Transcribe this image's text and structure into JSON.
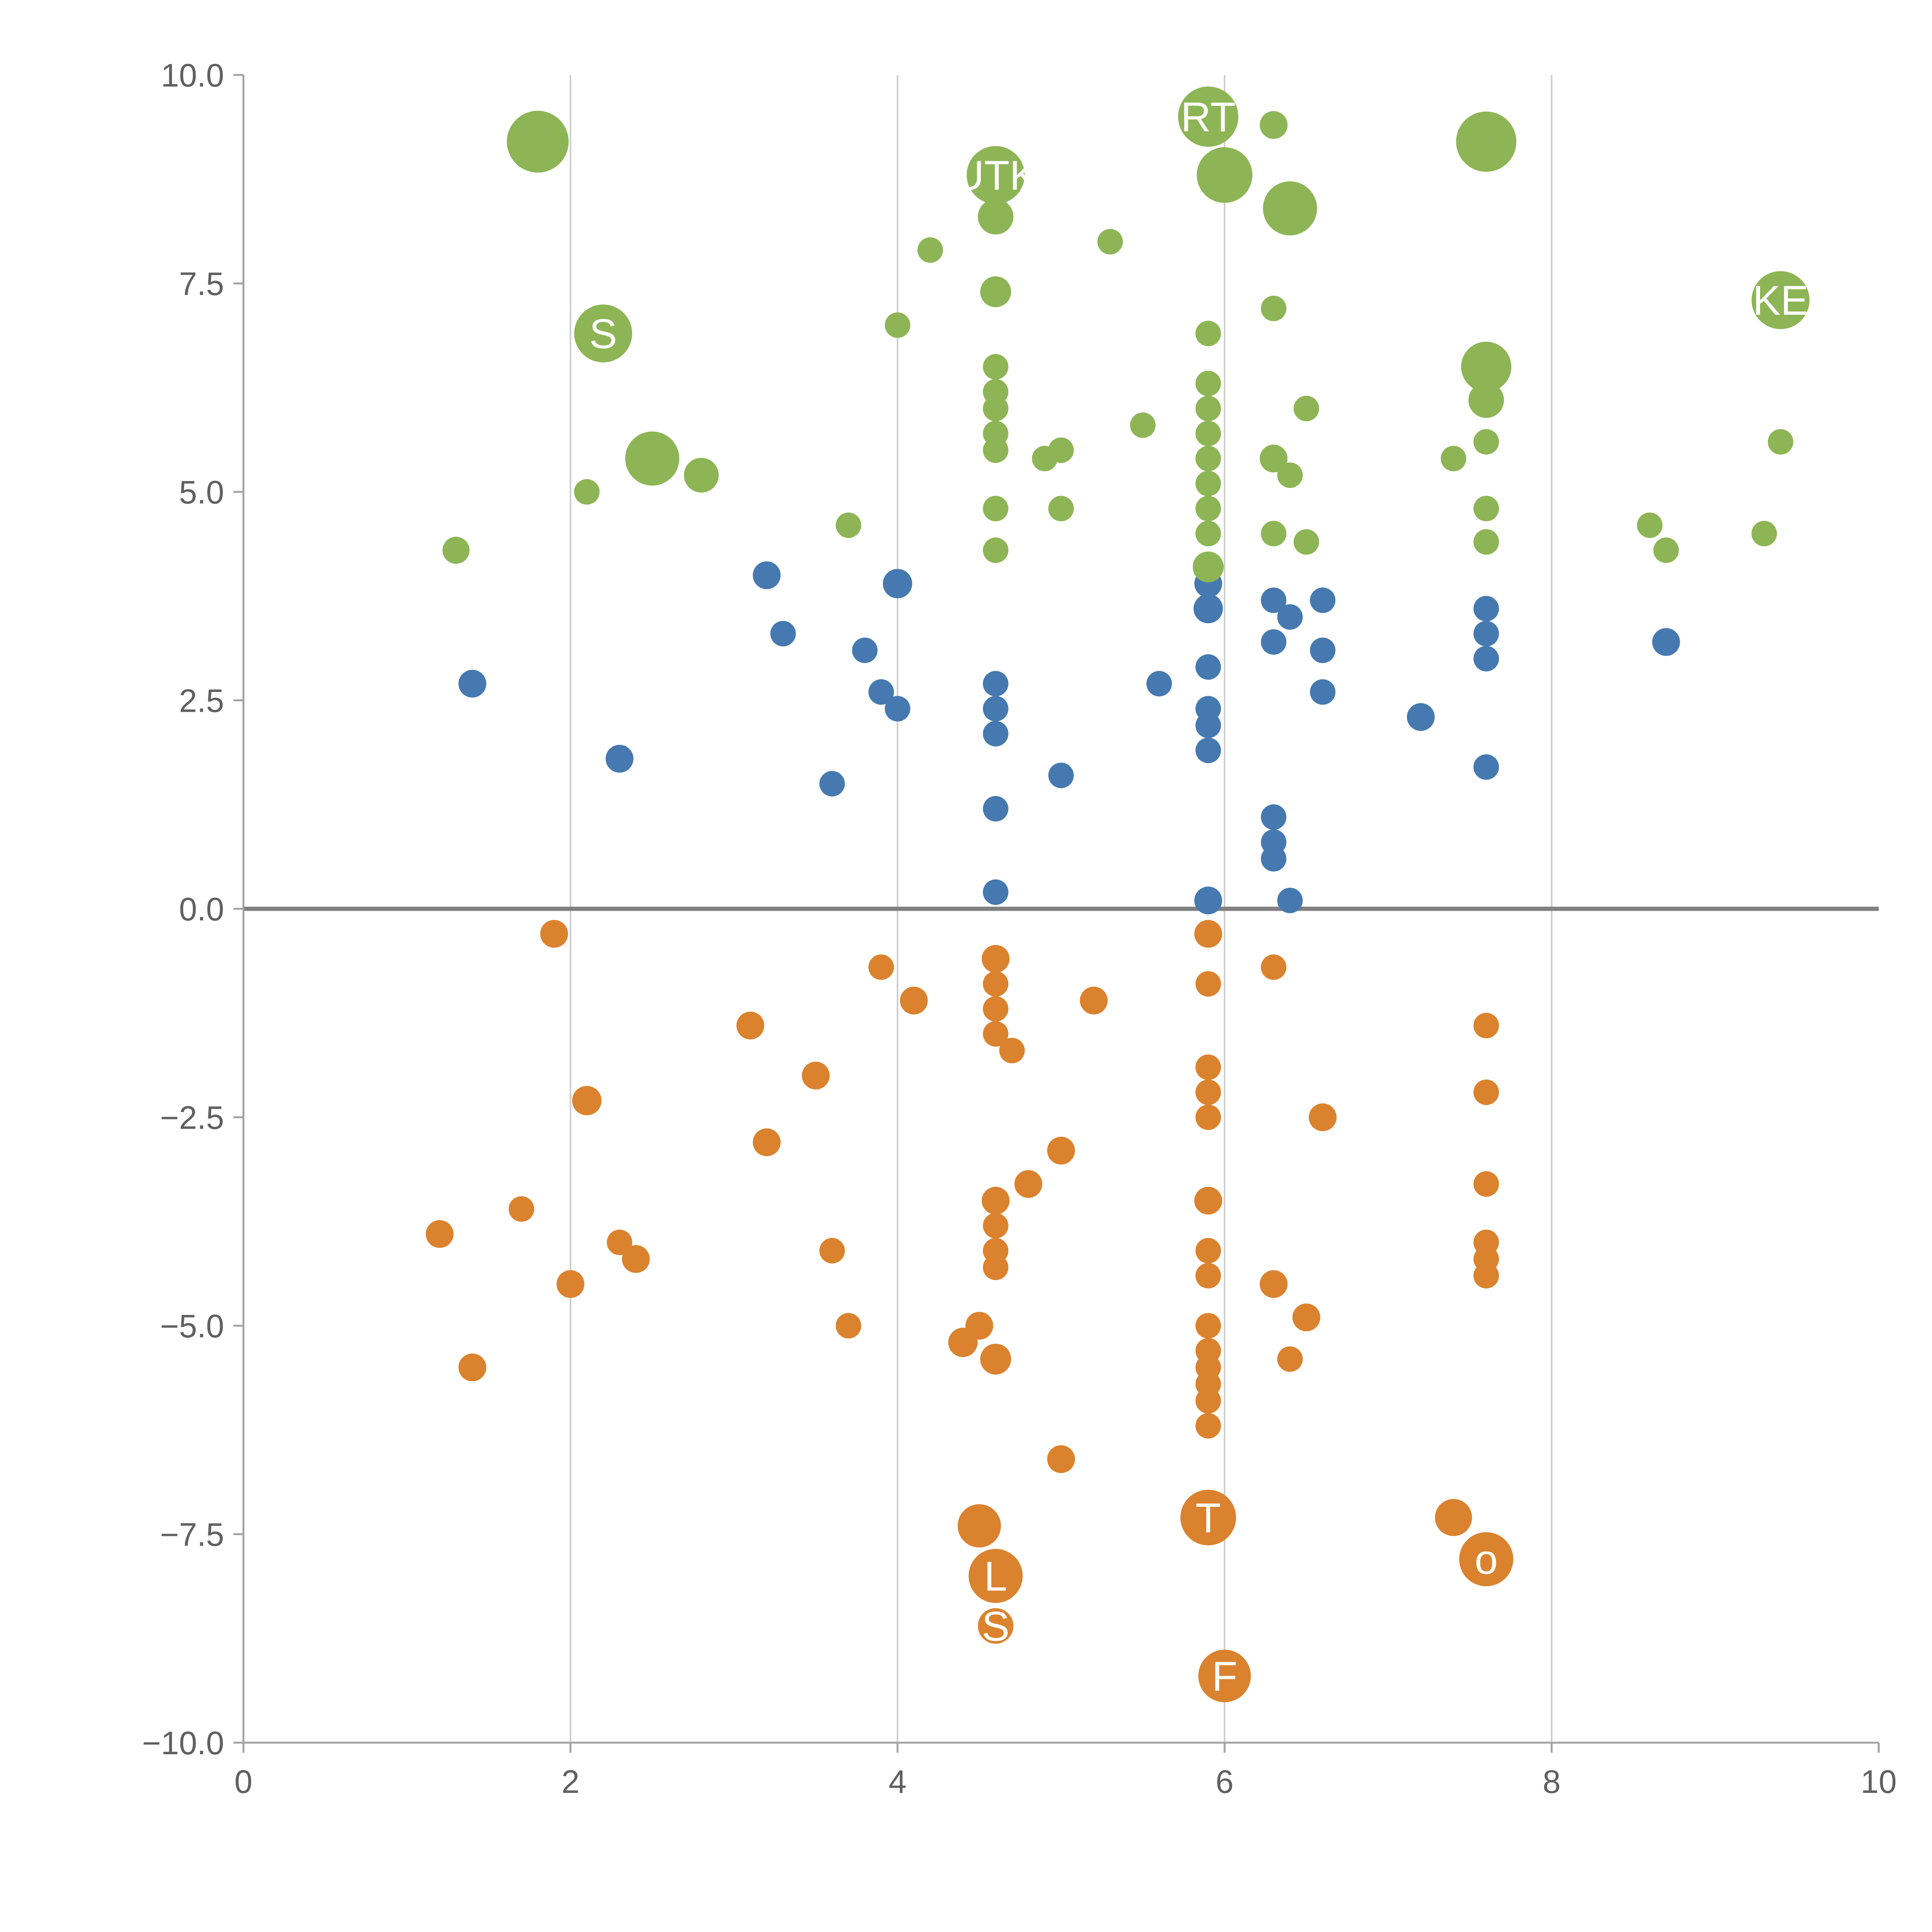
{
  "figure": {
    "background": "#ffffff"
  },
  "chart_data": {
    "type": "scatter",
    "title": "",
    "xlabel": "",
    "ylabel": "",
    "xlim": [
      0,
      10
    ],
    "ylim": [
      -10,
      10
    ],
    "grid": "vertical-only",
    "grid_x": [
      2,
      4,
      6,
      8
    ],
    "zero_line_y": 0,
    "x_tick_values": [
      0,
      2,
      4,
      6,
      8,
      10
    ],
    "x_tick_labels": [
      "0",
      "2",
      "4",
      "6",
      "8",
      "10"
    ],
    "y_tick_values": [
      -10,
      -7.5,
      -5,
      -2.5,
      0,
      2.5,
      5,
      7.5,
      10
    ],
    "y_tick_labels": [
      "−10.0",
      "−7.5",
      "−5.0",
      "−2.5",
      "0.0",
      "2.5",
      "5.0",
      "7.5",
      "10.0"
    ],
    "colors": {
      "grid": "#cccccc",
      "spine": "#a3a3a3",
      "zero_line": "#808080",
      "tick_text": "#606060",
      "label_text": "#ffffff"
    },
    "series": [
      {
        "name": "blue",
        "color": "#4679b0",
        "points": [
          [
            1.4,
            2.7,
            36
          ],
          [
            2.3,
            1.8,
            36
          ],
          [
            3.2,
            4.0,
            36
          ],
          [
            3.3,
            3.3,
            33
          ],
          [
            3.6,
            1.5,
            33
          ],
          [
            3.8,
            3.1,
            33
          ],
          [
            3.9,
            2.6,
            33
          ],
          [
            4.0,
            2.4,
            33
          ],
          [
            4.0,
            3.9,
            38
          ],
          [
            4.6,
            2.7,
            33
          ],
          [
            4.6,
            2.4,
            33
          ],
          [
            4.6,
            2.1,
            33
          ],
          [
            4.6,
            1.2,
            33
          ],
          [
            4.6,
            0.2,
            33
          ],
          [
            5.0,
            1.6,
            33
          ],
          [
            5.6,
            2.7,
            33
          ],
          [
            5.9,
            3.9,
            36
          ],
          [
            5.9,
            3.6,
            38
          ],
          [
            5.9,
            2.9,
            33
          ],
          [
            5.9,
            2.4,
            33
          ],
          [
            5.9,
            2.2,
            33
          ],
          [
            5.9,
            1.9,
            33
          ],
          [
            5.9,
            0.1,
            36
          ],
          [
            6.3,
            3.7,
            33
          ],
          [
            6.4,
            3.5,
            33
          ],
          [
            6.3,
            3.2,
            33
          ],
          [
            6.6,
            3.7,
            33
          ],
          [
            6.6,
            3.1,
            33
          ],
          [
            6.6,
            2.6,
            33
          ],
          [
            6.3,
            1.1,
            33
          ],
          [
            6.3,
            0.8,
            33
          ],
          [
            6.3,
            0.6,
            33
          ],
          [
            6.4,
            0.1,
            33
          ],
          [
            7.2,
            2.3,
            36
          ],
          [
            7.6,
            3.6,
            33
          ],
          [
            7.6,
            3.3,
            33
          ],
          [
            7.6,
            3.0,
            33
          ],
          [
            7.6,
            1.7,
            33
          ],
          [
            8.7,
            3.2,
            36
          ]
        ]
      },
      {
        "name": "orange",
        "color": "#db822e",
        "points": [
          [
            1.9,
            -0.3,
            36
          ],
          [
            1.2,
            -3.9,
            36
          ],
          [
            1.4,
            -5.5,
            36
          ],
          [
            1.7,
            -3.6,
            33
          ],
          [
            2.0,
            -4.5,
            36
          ],
          [
            2.1,
            -2.3,
            38
          ],
          [
            2.3,
            -4.0,
            33
          ],
          [
            2.4,
            -4.2,
            36
          ],
          [
            3.1,
            -1.4,
            36
          ],
          [
            3.2,
            -2.8,
            36
          ],
          [
            3.5,
            -2.0,
            36
          ],
          [
            3.6,
            -4.1,
            33
          ],
          [
            3.7,
            -5.0,
            33
          ],
          [
            3.9,
            -0.7,
            33
          ],
          [
            4.1,
            -1.1,
            36
          ],
          [
            4.4,
            -5.2,
            38
          ],
          [
            4.5,
            -5.0,
            36
          ],
          [
            4.6,
            -0.6,
            36
          ],
          [
            4.6,
            -0.9,
            33
          ],
          [
            4.6,
            -1.2,
            33
          ],
          [
            4.6,
            -1.5,
            33
          ],
          [
            4.7,
            -1.7,
            33
          ],
          [
            4.6,
            -3.5,
            36
          ],
          [
            4.6,
            -3.8,
            33
          ],
          [
            4.6,
            -4.1,
            33
          ],
          [
            4.6,
            -4.3,
            33
          ],
          [
            4.6,
            -5.4,
            40
          ],
          [
            4.5,
            -7.4,
            56
          ],
          [
            4.6,
            -8.0,
            70,
            "L"
          ],
          [
            4.6,
            -8.6,
            46,
            "S"
          ],
          [
            4.8,
            -3.3,
            36
          ],
          [
            5.0,
            -2.9,
            36
          ],
          [
            5.0,
            -6.6,
            36
          ],
          [
            5.2,
            -1.1,
            36
          ],
          [
            5.9,
            -0.3,
            36
          ],
          [
            5.9,
            -0.9,
            33
          ],
          [
            5.9,
            -1.9,
            33
          ],
          [
            5.9,
            -2.2,
            33
          ],
          [
            5.9,
            -2.5,
            33
          ],
          [
            5.9,
            -3.5,
            36
          ],
          [
            5.9,
            -4.1,
            33
          ],
          [
            5.9,
            -4.4,
            33
          ],
          [
            5.9,
            -5.0,
            33
          ],
          [
            5.9,
            -5.3,
            33
          ],
          [
            5.9,
            -5.5,
            33
          ],
          [
            5.9,
            -5.7,
            33
          ],
          [
            5.9,
            -5.9,
            33
          ],
          [
            5.9,
            -6.2,
            33
          ],
          [
            5.9,
            -7.3,
            72,
            "T"
          ],
          [
            6.0,
            -9.2,
            68,
            "F"
          ],
          [
            6.3,
            -0.7,
            33
          ],
          [
            6.3,
            -4.5,
            36
          ],
          [
            6.4,
            -5.4,
            33
          ],
          [
            6.5,
            -4.9,
            36
          ],
          [
            6.6,
            -2.5,
            36
          ],
          [
            7.6,
            -1.4,
            33
          ],
          [
            7.6,
            -2.2,
            33
          ],
          [
            7.6,
            -3.3,
            33
          ],
          [
            7.6,
            -4.0,
            33
          ],
          [
            7.6,
            -4.2,
            33
          ],
          [
            7.6,
            -4.4,
            33
          ],
          [
            7.4,
            -7.3,
            48
          ],
          [
            7.6,
            -7.8,
            70,
            "o"
          ]
        ]
      },
      {
        "name": "green",
        "color": "#8db555",
        "points": [
          [
            1.8,
            9.2,
            80
          ],
          [
            2.2,
            6.9,
            75,
            "S"
          ],
          [
            2.5,
            5.4,
            70
          ],
          [
            2.8,
            5.2,
            45
          ],
          [
            2.1,
            5.0,
            33
          ],
          [
            1.3,
            4.3,
            35
          ],
          [
            3.7,
            4.6,
            33
          ],
          [
            4.0,
            7.0,
            33
          ],
          [
            4.2,
            7.9,
            33
          ],
          [
            4.6,
            8.8,
            75,
            "UTK"
          ],
          [
            4.6,
            8.3,
            46
          ],
          [
            4.6,
            7.4,
            40
          ],
          [
            4.6,
            6.5,
            33
          ],
          [
            4.6,
            6.2,
            33
          ],
          [
            4.6,
            6.0,
            33
          ],
          [
            4.6,
            5.7,
            33
          ],
          [
            4.6,
            5.5,
            33
          ],
          [
            4.6,
            4.8,
            33
          ],
          [
            4.6,
            4.3,
            33
          ],
          [
            4.9,
            5.4,
            33
          ],
          [
            5.0,
            5.5,
            33
          ],
          [
            5.0,
            4.8,
            33
          ],
          [
            5.3,
            8.0,
            33
          ],
          [
            5.5,
            5.8,
            33
          ],
          [
            5.9,
            9.5,
            78,
            "RT"
          ],
          [
            6.0,
            8.8,
            72
          ],
          [
            6.3,
            9.4,
            36
          ],
          [
            6.4,
            8.4,
            70
          ],
          [
            5.9,
            6.9,
            33
          ],
          [
            5.9,
            6.3,
            33
          ],
          [
            5.9,
            6.0,
            33
          ],
          [
            5.9,
            5.7,
            33
          ],
          [
            5.9,
            5.4,
            33
          ],
          [
            5.9,
            5.1,
            33
          ],
          [
            5.9,
            4.8,
            33
          ],
          [
            5.9,
            4.5,
            33
          ],
          [
            5.9,
            4.1,
            40
          ],
          [
            6.3,
            5.4,
            36
          ],
          [
            6.4,
            5.2,
            33
          ],
          [
            6.5,
            6.0,
            33
          ],
          [
            6.3,
            7.2,
            33
          ],
          [
            6.3,
            4.5,
            33
          ],
          [
            6.5,
            4.4,
            33
          ],
          [
            7.6,
            9.2,
            78
          ],
          [
            7.6,
            6.5,
            65
          ],
          [
            7.6,
            6.1,
            46
          ],
          [
            7.6,
            5.6,
            33
          ],
          [
            7.4,
            5.4,
            33
          ],
          [
            7.6,
            4.8,
            33
          ],
          [
            7.6,
            4.4,
            33
          ],
          [
            8.6,
            4.6,
            33
          ],
          [
            8.7,
            4.3,
            33
          ],
          [
            9.4,
            7.3,
            75,
            "KE"
          ],
          [
            9.4,
            5.6,
            33
          ],
          [
            9.3,
            4.5,
            33
          ]
        ]
      }
    ],
    "annotations": [
      {
        "text": "RT",
        "x": 5.9,
        "y": 9.5
      },
      {
        "text": "UTK",
        "x": 4.6,
        "y": 8.8
      },
      {
        "text": "S",
        "x": 2.2,
        "y": 6.9
      },
      {
        "text": "KE",
        "x": 9.4,
        "y": 7.3
      },
      {
        "text": "L",
        "x": 4.6,
        "y": -8.0
      },
      {
        "text": "S",
        "x": 4.6,
        "y": -8.6
      },
      {
        "text": "T",
        "x": 5.9,
        "y": -7.3
      },
      {
        "text": "F",
        "x": 6.0,
        "y": -9.2
      },
      {
        "text": "o",
        "x": 7.6,
        "y": -7.8
      }
    ],
    "legend": "none"
  }
}
